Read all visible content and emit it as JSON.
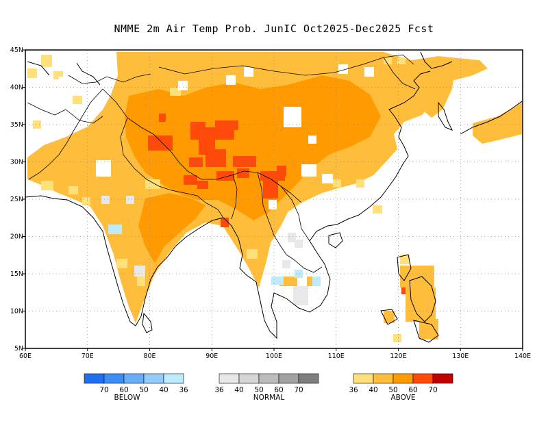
{
  "title": "NMME 2m Air Temp Prob. JunIC  Oct2025-Dec2025 Fcst",
  "map": {
    "lon_range": [
      60,
      140
    ],
    "lat_range": [
      5,
      45
    ],
    "x_ticks": [
      "60E",
      "70E",
      "80E",
      "90E",
      "100E",
      "110E",
      "120E",
      "130E",
      "140E"
    ],
    "y_ticks": [
      "45N",
      "40N",
      "35N",
      "30N",
      "25N",
      "20N",
      "15N",
      "10N",
      "5N"
    ],
    "grid": "dotted",
    "features": [
      "coastlines",
      "country-borders"
    ]
  },
  "legend": {
    "below": {
      "label": "BELOW",
      "ticks": [
        "70",
        "60",
        "50",
        "40",
        "36"
      ],
      "colors": [
        "#1f6ff0",
        "#3c8ef5",
        "#6aaef8",
        "#93cbfa",
        "#bdebfb"
      ]
    },
    "normal": {
      "label": "NORMAL",
      "ticks": [
        "36",
        "40",
        "50",
        "60",
        "70"
      ],
      "colors": [
        "#e8e8e8",
        "#d6d6d6",
        "#bcbcbc",
        "#a2a2a2",
        "#7e7e7e"
      ]
    },
    "above": {
      "label": "ABOVE",
      "ticks": [
        "36",
        "40",
        "50",
        "60",
        "70"
      ],
      "colors": [
        "#ffe07a",
        "#ffbd3c",
        "#ff9a00",
        "#ff4a0a",
        "#c00000"
      ]
    }
  }
}
